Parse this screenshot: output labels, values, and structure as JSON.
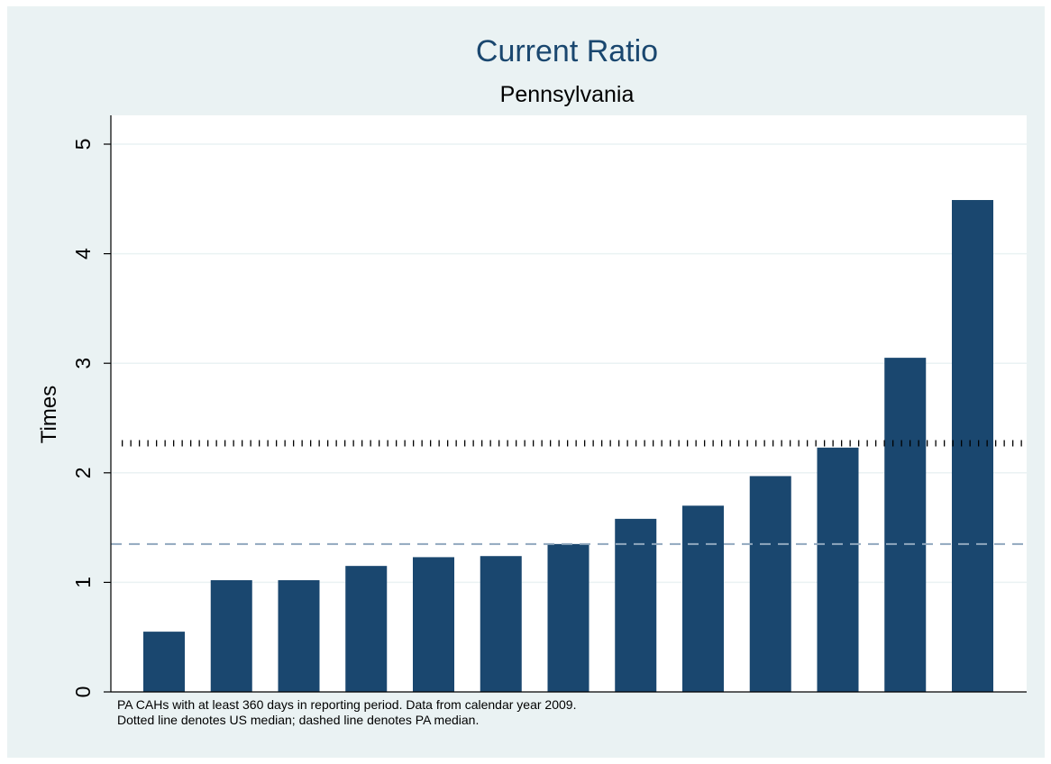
{
  "colors": {
    "background": "#eaf2f3",
    "plot_background": "#ffffff",
    "bar": "#1a476f",
    "gridline": "#eaf2f3",
    "us_median_line": "#000000",
    "pa_median_line": "#90a8be",
    "title": "#1a476f"
  },
  "chart_data": {
    "type": "bar",
    "title": "Current Ratio",
    "subtitle": "Pennsylvania",
    "xlabel": "",
    "ylabel": "Times",
    "ylim": [
      0,
      5.2
    ],
    "yticks": [
      0,
      1,
      2,
      3,
      4,
      5
    ],
    "grid": true,
    "values": [
      0.55,
      1.02,
      1.02,
      1.15,
      1.23,
      1.24,
      1.35,
      1.58,
      1.7,
      1.97,
      2.23,
      3.05,
      4.49
    ],
    "reference_lines": [
      {
        "name": "US median",
        "style": "dotted",
        "value": 2.27
      },
      {
        "name": "PA median",
        "style": "dashed",
        "value": 1.35
      }
    ],
    "notes": [
      "PA CAHs with at least 360 days in reporting period. Data from calendar year 2009.",
      "Dotted line denotes US median; dashed line denotes PA median."
    ]
  }
}
